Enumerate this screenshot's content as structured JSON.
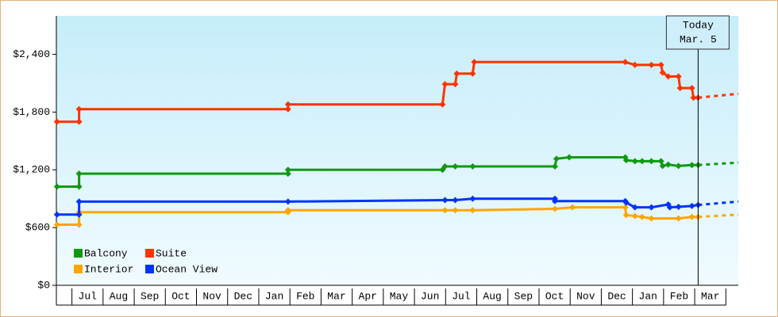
{
  "chart_data": {
    "type": "line",
    "xlim": [
      -0.5,
      21.4
    ],
    "ylim": [
      0,
      2800
    ],
    "yticks": [
      {
        "value": 0,
        "label": "$0"
      },
      {
        "value": 600,
        "label": "$600"
      },
      {
        "value": 1200,
        "label": "$1,200"
      },
      {
        "value": 1800,
        "label": "$1,800"
      },
      {
        "value": 2400,
        "label": "$2,400"
      }
    ],
    "xticks": [
      {
        "value": 0,
        "label": "Jul"
      },
      {
        "value": 1,
        "label": "Aug"
      },
      {
        "value": 2,
        "label": "Sep"
      },
      {
        "value": 3,
        "label": "Oct"
      },
      {
        "value": 4,
        "label": "Nov"
      },
      {
        "value": 5,
        "label": "Dec"
      },
      {
        "value": 6,
        "label": "Jan"
      },
      {
        "value": 7,
        "label": "Feb"
      },
      {
        "value": 8,
        "label": "Mar"
      },
      {
        "value": 9,
        "label": "Apr"
      },
      {
        "value": 10,
        "label": "May"
      },
      {
        "value": 11,
        "label": "Jun"
      },
      {
        "value": 12,
        "label": "Jul"
      },
      {
        "value": 13,
        "label": "Aug"
      },
      {
        "value": 14,
        "label": "Sep"
      },
      {
        "value": 15,
        "label": "Oct"
      },
      {
        "value": 16,
        "label": "Nov"
      },
      {
        "value": 17,
        "label": "Dec"
      },
      {
        "value": 18,
        "label": "Jan"
      },
      {
        "value": 19,
        "label": "Feb"
      },
      {
        "value": 20,
        "label": "Mar"
      }
    ],
    "today": {
      "x": 20.11,
      "label": "Today",
      "date": "Mar. 5"
    },
    "forecast_x": [
      20.11,
      21.4
    ],
    "series": [
      {
        "name": "Balcony",
        "color": "#109910",
        "x": [
          -0.48,
          0.23,
          0.23,
          6.94,
          6.94,
          11.9,
          11.98,
          12.31,
          12.87,
          15.51,
          15.56,
          15.97,
          17.77,
          17.8,
          18.08,
          18.31,
          18.61,
          18.92,
          18.97,
          19.15,
          19.48,
          19.91,
          20.11
        ],
        "values": [
          1025,
          1025,
          1160,
          1160,
          1200,
          1200,
          1235,
          1235,
          1235,
          1235,
          1315,
          1330,
          1330,
          1300,
          1290,
          1290,
          1290,
          1290,
          1240,
          1255,
          1240,
          1250,
          1250
        ],
        "forecast": [
          1250,
          1275
        ]
      },
      {
        "name": "Suite",
        "color": "#ff3300",
        "x": [
          -0.48,
          0.23,
          0.23,
          6.94,
          6.94,
          11.9,
          11.98,
          12.31,
          12.36,
          12.87,
          12.92,
          17.77,
          18.08,
          18.61,
          18.92,
          18.97,
          19.15,
          19.48,
          19.53,
          19.91,
          19.96,
          20.11
        ],
        "values": [
          1700,
          1700,
          1830,
          1830,
          1880,
          1880,
          2090,
          2090,
          2200,
          2200,
          2320,
          2320,
          2290,
          2290,
          2290,
          2210,
          2170,
          2170,
          2050,
          2050,
          1950,
          1950
        ],
        "forecast": [
          1950,
          1990
        ]
      },
      {
        "name": "Interior",
        "color": "#ffa500",
        "x": [
          -0.48,
          0.23,
          0.23,
          6.94,
          6.94,
          11.98,
          12.31,
          12.87,
          15.51,
          16.07,
          17.77,
          17.8,
          18.08,
          18.31,
          18.61,
          19.48,
          19.91,
          20.11
        ],
        "values": [
          630,
          630,
          760,
          760,
          780,
          780,
          780,
          780,
          795,
          810,
          810,
          730,
          720,
          710,
          695,
          695,
          710,
          710
        ],
        "forecast": [
          710,
          735
        ]
      },
      {
        "name": "Ocean View",
        "color": "#0033ff",
        "x": [
          -0.48,
          0.23,
          0.23,
          6.94,
          11.98,
          12.31,
          12.87,
          15.51,
          15.51,
          17.77,
          17.8,
          18.08,
          18.61,
          19.15,
          19.2,
          19.48,
          19.91,
          20.11
        ],
        "values": [
          735,
          735,
          870,
          870,
          885,
          885,
          900,
          900,
          875,
          875,
          860,
          810,
          810,
          840,
          810,
          815,
          825,
          835
        ],
        "forecast": [
          835,
          870
        ]
      }
    ]
  }
}
